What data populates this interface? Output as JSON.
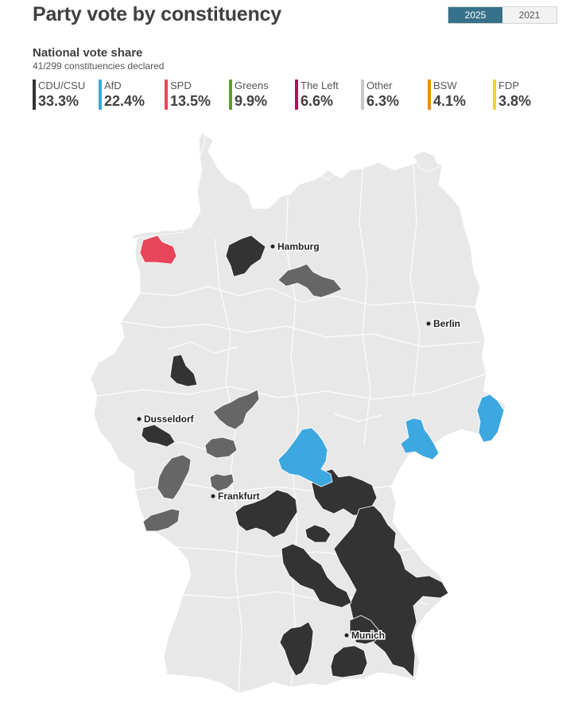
{
  "title": "Party vote by constituency",
  "year_toggle": {
    "selected": "2025",
    "other": "2021"
  },
  "subtitle": "National vote share",
  "declared": "41/299 constituencies declared",
  "parties": [
    {
      "name": "CDU/CSU",
      "share": "33.3%",
      "color": "#333333"
    },
    {
      "name": "AfD",
      "share": "22.4%",
      "color": "#3da7e0"
    },
    {
      "name": "SPD",
      "share": "13.5%",
      "color": "#e8465a"
    },
    {
      "name": "Greens",
      "share": "9.9%",
      "color": "#5d9e2f"
    },
    {
      "name": "The Left",
      "share": "6.6%",
      "color": "#b0125d"
    },
    {
      "name": "Other",
      "share": "6.3%",
      "color": "#c9c9c9"
    },
    {
      "name": "BSW",
      "share": "4.1%",
      "color": "#f28a12"
    },
    {
      "name": "FDP",
      "share": "3.8%",
      "color": "#f0cf3c"
    }
  ],
  "colors": {
    "undeclared": "#e8e8e8",
    "cdu_csu": "#333333",
    "afd": "#3da7e0",
    "spd": "#e8465a",
    "other": "#666666",
    "border": "#ffffff"
  },
  "cities": {
    "hamburg": "Hamburg",
    "berlin": "Berlin",
    "dusseldorf": "Dusseldorf",
    "frankfurt": "Frankfurt",
    "munich": "Munich"
  }
}
